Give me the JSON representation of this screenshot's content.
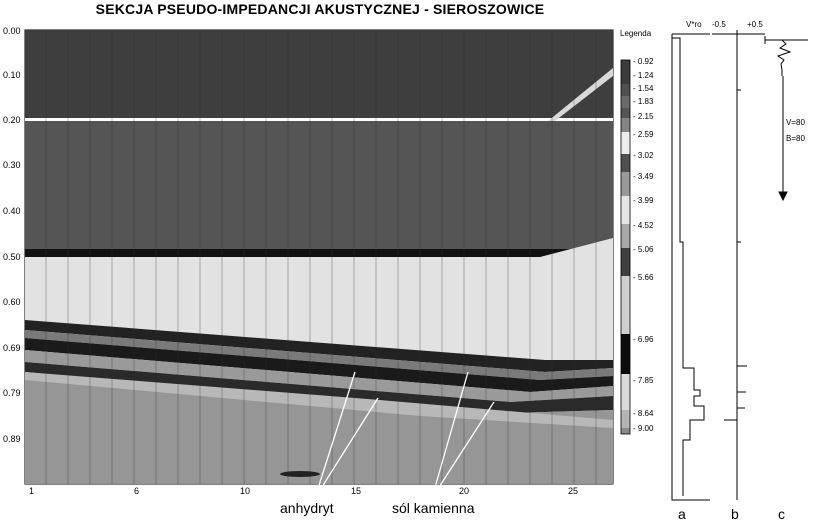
{
  "title": "SEKCJA PSEUDO-IMPEDANCJI AKUSTYCZNEJ - SIEROSZOWICE",
  "y_axis_labels": [
    "0.00",
    "0.10",
    "0.20",
    "0.30",
    "0.40",
    "0.50",
    "0.60",
    "0.69",
    "0.79",
    "0.89"
  ],
  "x_axis_labels": [
    "1",
    "6",
    "10",
    "15",
    "20",
    "25"
  ],
  "legend": {
    "title": "Legenda",
    "values": [
      "- 0.92",
      "- 1.24",
      "- 1.54",
      "- 1.83",
      "- 2.15",
      "- 2.59",
      "- 3.02",
      "- 3.49",
      "- 3.99",
      "- 4.52",
      "- 5.06",
      "- 5.66",
      "- 6.96",
      "- 7.85",
      "- 8.64",
      "- 9.00"
    ],
    "colors": [
      "#3c3c3c",
      "#505050",
      "#6a6a6a",
      "#555555",
      "#848484",
      "#ececec",
      "#505050",
      "#9a9a9a",
      "#e6e6e6",
      "#a8a8a8",
      "#404040",
      "#cfcfcf",
      "#0c0c0c",
      "#dadada",
      "#b4b4b4",
      "#8a8a8a"
    ]
  },
  "annotations": {
    "anhydryt": "anhydryt",
    "sol_kamienna": "sól kamienna"
  },
  "wells": {
    "header_vro": "V*ro",
    "header_minus": "-0.5",
    "header_plus": "+0.5",
    "v_text": "V=80",
    "b_text": "B=80",
    "label_a": "a",
    "label_b": "b",
    "label_c": "c"
  }
}
